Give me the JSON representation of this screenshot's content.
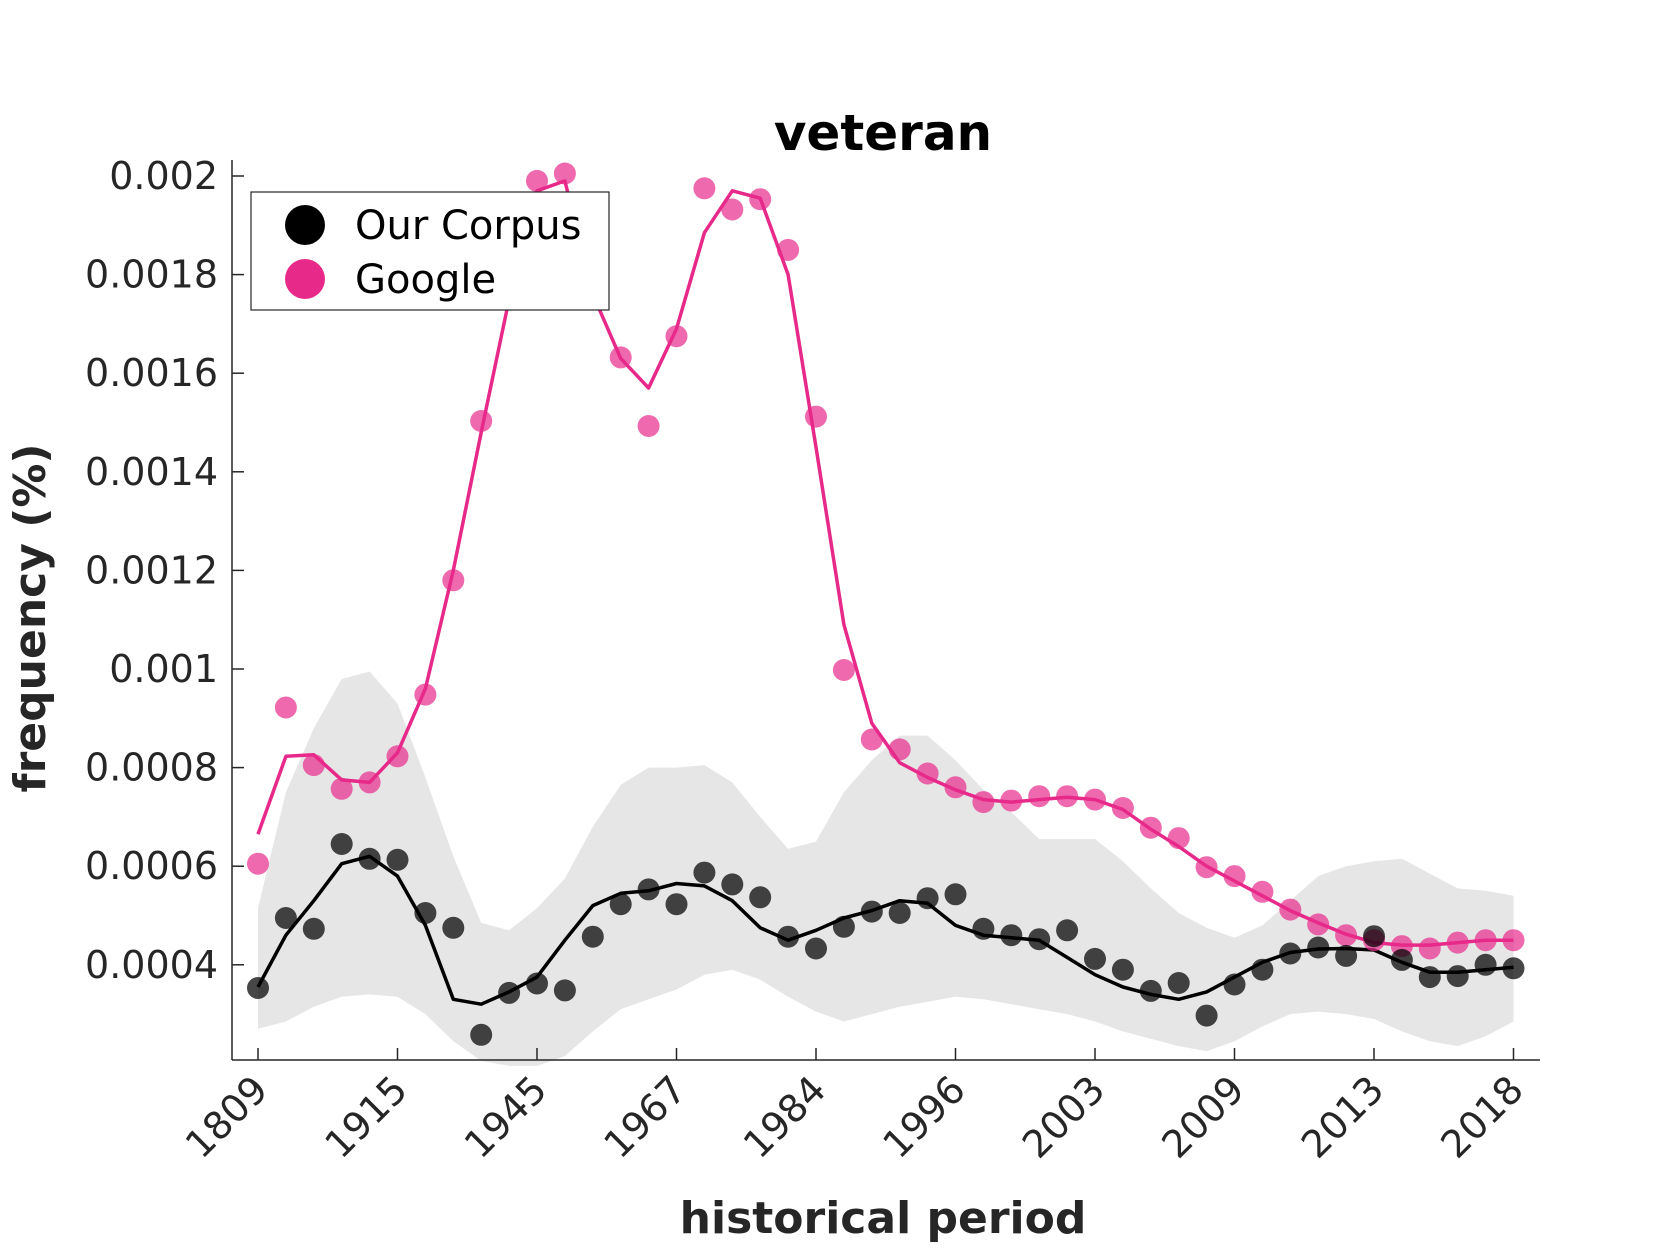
{
  "chart_data": {
    "type": "line",
    "title": "veteran",
    "xlabel": "historical period",
    "ylabel": "frequency (%)",
    "x_tick_labels": [
      "1809",
      "1915",
      "1945",
      "1967",
      "1984",
      "1996",
      "2003",
      "2009",
      "2013",
      "2018"
    ],
    "y_ticks": [
      0.0004,
      0.0006,
      0.0008,
      0.001,
      0.0012,
      0.0014,
      0.0016,
      0.0018,
      0.002
    ],
    "y_tick_labels": [
      "0.0004",
      "0.0006",
      "0.0008",
      "0.001",
      "0.0012",
      "0.0014",
      "0.0016",
      "0.0018",
      "0.002"
    ],
    "ylim": [
      0.0002,
      0.002
    ],
    "legend_position": "top-left",
    "n_points": 46,
    "series": [
      {
        "name": "Our Corpus",
        "color": "#000000",
        "points": [
          0.000353,
          0.000495,
          0.000473,
          0.000645,
          0.000615,
          0.000613,
          0.000505,
          0.000475,
          0.000258,
          0.000343,
          0.000362,
          0.000348,
          0.000457,
          0.000523,
          0.000553,
          0.000523,
          0.000587,
          0.000563,
          0.000537,
          0.000457,
          0.000433,
          0.000477,
          0.000508,
          0.000505,
          0.000535,
          0.000543,
          0.000473,
          0.00046,
          0.000452,
          0.00047,
          0.000412,
          0.00039,
          0.000347,
          0.000363,
          0.000297,
          0.00036,
          0.00039,
          0.000423,
          0.000435,
          0.000418,
          0.000458,
          0.00041,
          0.000375,
          0.000377,
          0.0004,
          0.000393
        ],
        "smoothed": [
          0.000355,
          0.00046,
          0.00053,
          0.000605,
          0.00062,
          0.00058,
          0.00048,
          0.00033,
          0.00032,
          0.000345,
          0.000375,
          0.00045,
          0.00052,
          0.000545,
          0.00055,
          0.000565,
          0.00056,
          0.00053,
          0.000475,
          0.00045,
          0.00047,
          0.000495,
          0.00051,
          0.00053,
          0.000525,
          0.00048,
          0.00046,
          0.000455,
          0.00045,
          0.000415,
          0.00038,
          0.000355,
          0.00034,
          0.00033,
          0.000345,
          0.000375,
          0.000405,
          0.000425,
          0.000432,
          0.000433,
          0.00043,
          0.000405,
          0.000385,
          0.000385,
          0.00039,
          0.000395
        ],
        "band_upper": [
          0.000515,
          0.00075,
          0.00088,
          0.00098,
          0.000995,
          0.00093,
          0.00078,
          0.00062,
          0.000485,
          0.00047,
          0.000515,
          0.000575,
          0.00068,
          0.000765,
          0.0008,
          0.0008,
          0.000805,
          0.00077,
          0.0007,
          0.000635,
          0.00065,
          0.00075,
          0.000815,
          0.000865,
          0.000865,
          0.000815,
          0.000755,
          0.00071,
          0.000655,
          0.000655,
          0.000655,
          0.00061,
          0.000555,
          0.000505,
          0.000475,
          0.000455,
          0.00048,
          0.00053,
          0.00058,
          0.0006,
          0.00061,
          0.000615,
          0.000585,
          0.000555,
          0.00055,
          0.00054
        ],
        "band_lower": [
          0.00027,
          0.000285,
          0.000315,
          0.000335,
          0.00034,
          0.000335,
          0.0003,
          0.000245,
          0.000205,
          0.000195,
          0.000195,
          0.000215,
          0.000265,
          0.00031,
          0.00033,
          0.00035,
          0.00038,
          0.00039,
          0.00037,
          0.000335,
          0.000305,
          0.000285,
          0.0003,
          0.000315,
          0.000325,
          0.000335,
          0.00033,
          0.00032,
          0.00031,
          0.0003,
          0.000285,
          0.000265,
          0.00025,
          0.000235,
          0.000225,
          0.000245,
          0.000275,
          0.0003,
          0.000305,
          0.0003,
          0.00029,
          0.000265,
          0.000245,
          0.000235,
          0.000255,
          0.000285
        ]
      },
      {
        "name": "Google",
        "color": "#e7298a",
        "points": [
          0.000605,
          0.000922,
          0.000805,
          0.000757,
          0.00077,
          0.000823,
          0.000948,
          0.00118,
          0.001503,
          null,
          0.00199,
          0.002005,
          null,
          0.001632,
          0.001493,
          0.001675,
          0.001975,
          0.001932,
          0.001953,
          0.00185,
          0.001512,
          0.000998,
          0.000857,
          0.000837,
          0.000788,
          0.00076,
          0.00073,
          0.000733,
          0.000742,
          0.000742,
          0.000735,
          0.000718,
          0.000678,
          0.000657,
          0.000598,
          0.00058,
          0.000548,
          0.000512,
          0.000482,
          0.00046,
          0.00045,
          0.000438,
          0.000433,
          0.000445,
          0.00045,
          0.00045
        ],
        "smoothed": [
          0.000665,
          0.000823,
          0.000826,
          0.000775,
          0.00077,
          0.00083,
          0.00096,
          0.0012,
          0.00148,
          0.00175,
          0.00197,
          0.00199,
          0.00176,
          0.00163,
          0.00157,
          0.00169,
          0.001885,
          0.00197,
          0.001955,
          0.0018,
          0.00145,
          0.00109,
          0.00089,
          0.00081,
          0.00078,
          0.000755,
          0.000735,
          0.00073,
          0.000735,
          0.00074,
          0.000735,
          0.000715,
          0.000675,
          0.00064,
          0.0006,
          0.00057,
          0.00054,
          0.00051,
          0.000485,
          0.000462,
          0.000445,
          0.00044,
          0.00044,
          0.000445,
          0.00045,
          0.00045
        ]
      }
    ]
  }
}
